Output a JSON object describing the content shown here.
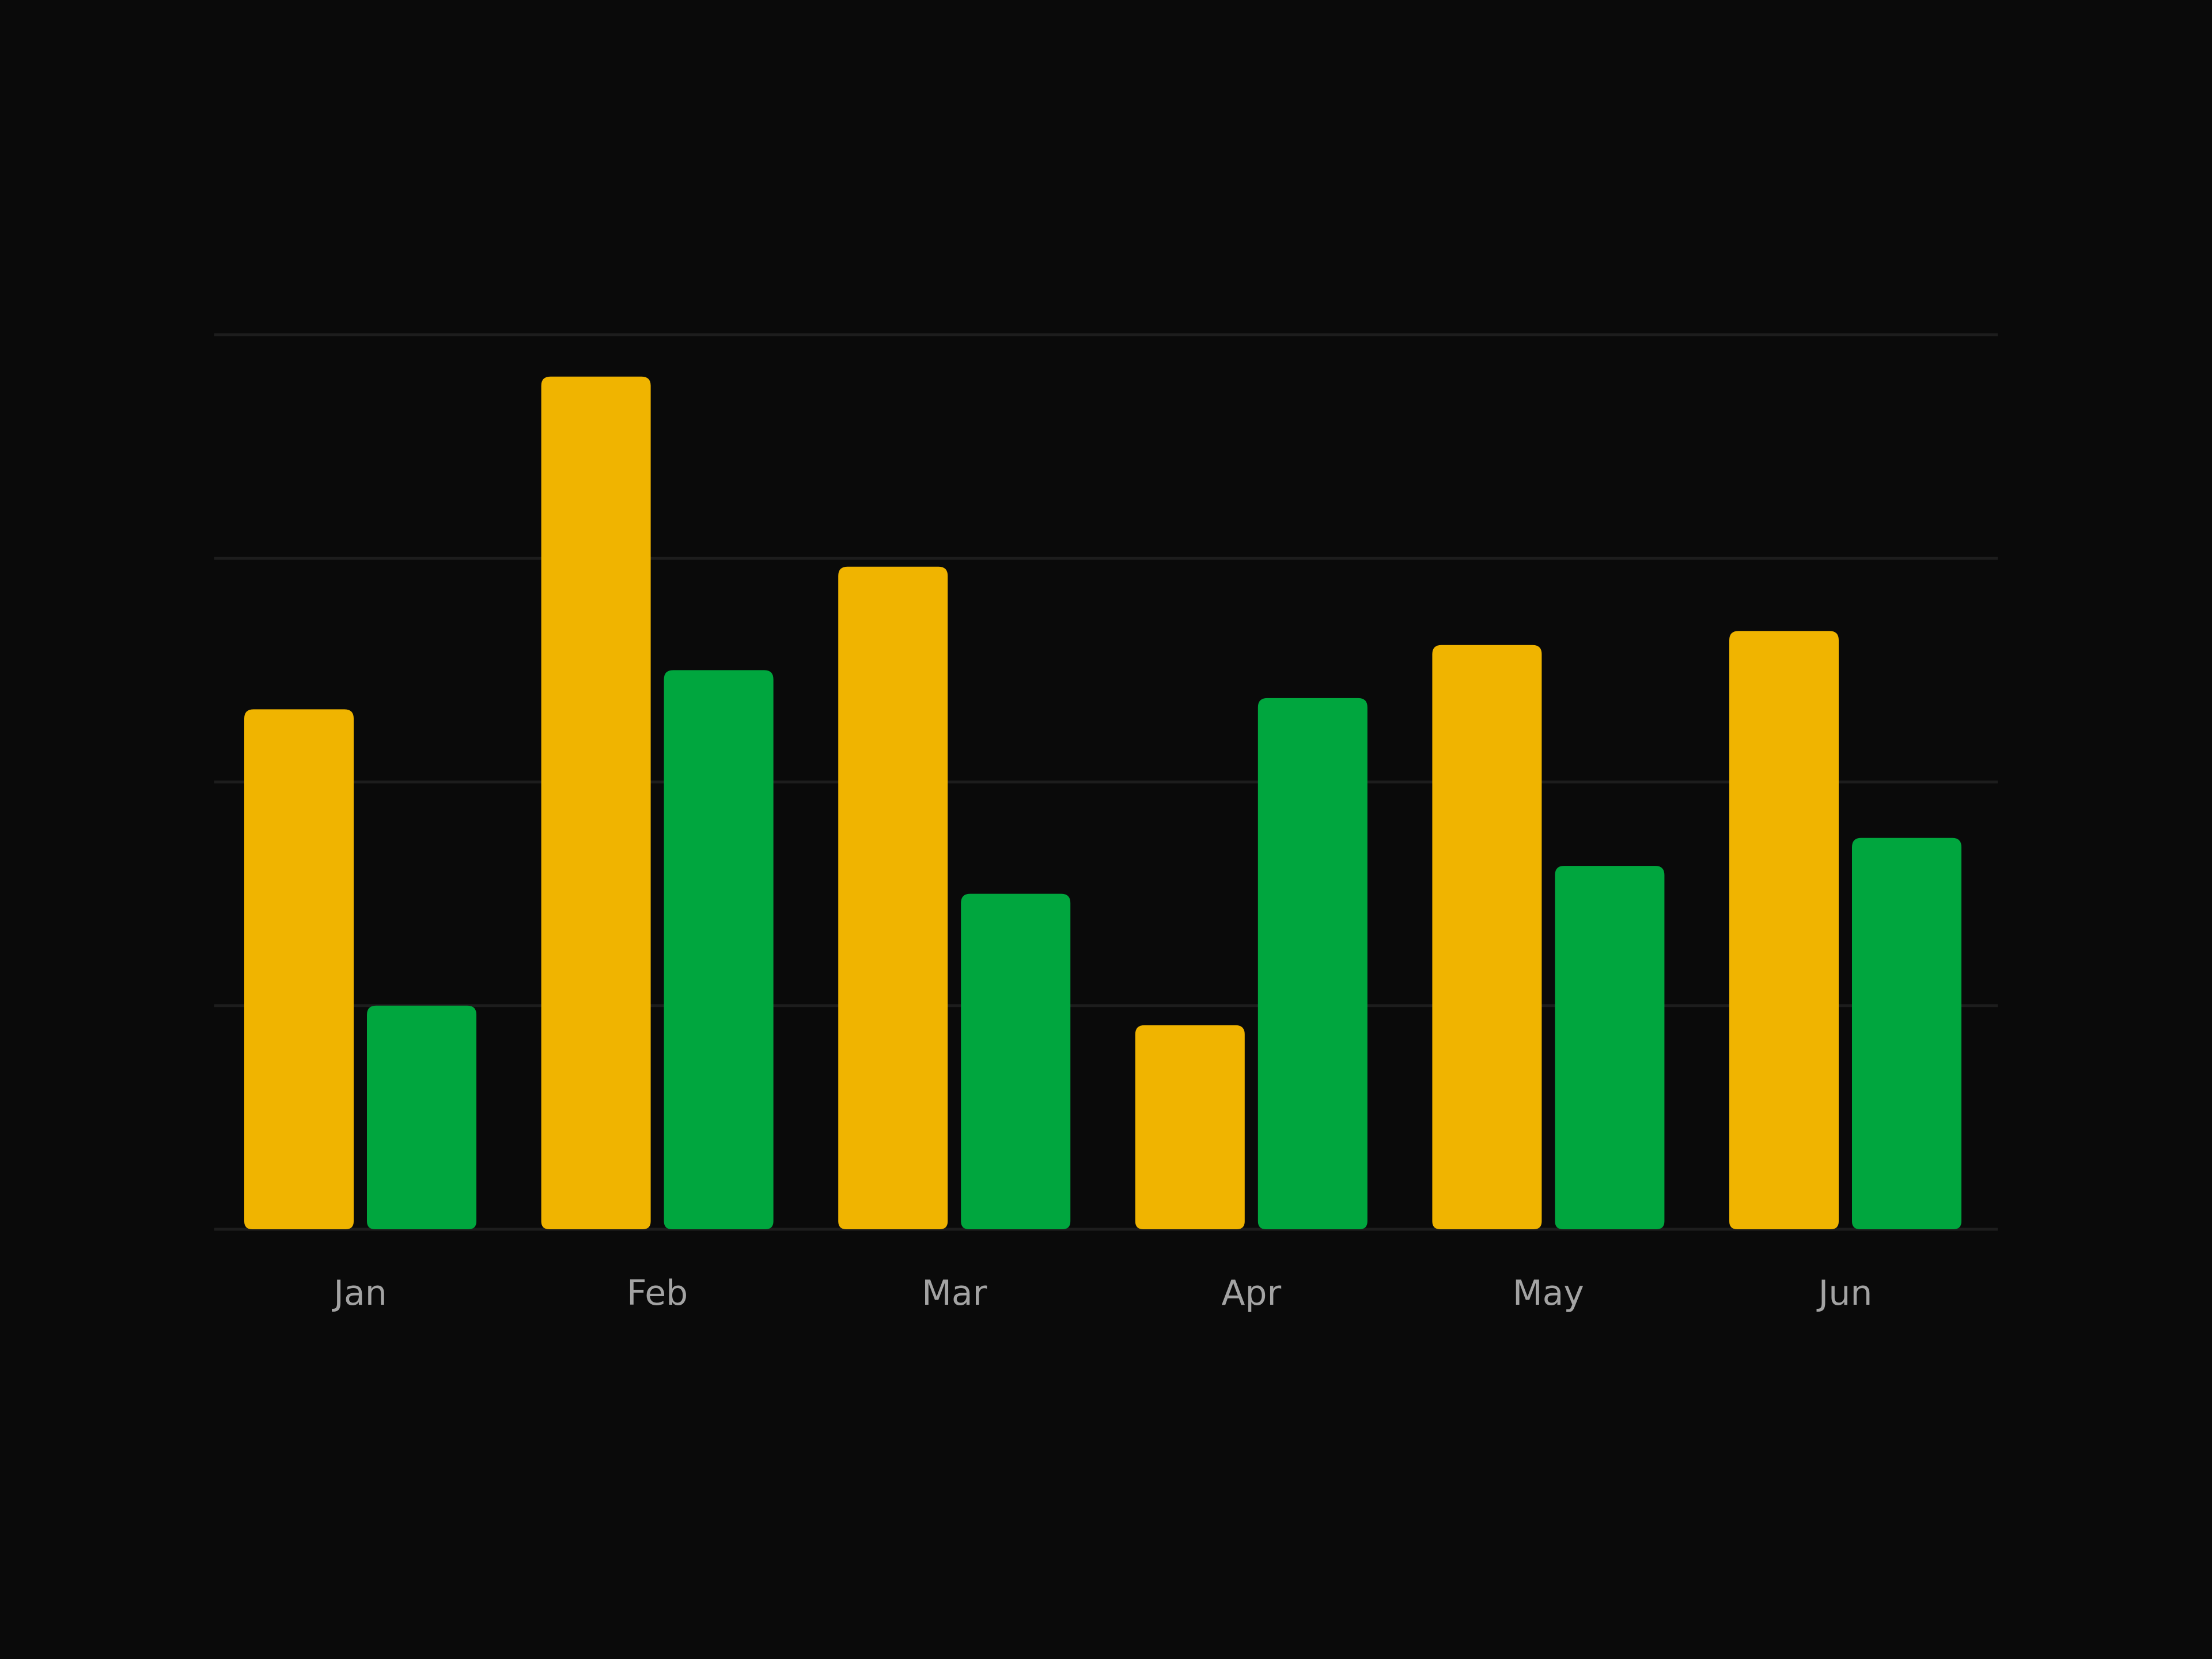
{
  "background_color": "#0a0a0a",
  "chart_data": {
    "type": "bar",
    "categories": [
      "Jan",
      "Feb",
      "Mar",
      "Apr",
      "May",
      "Jun"
    ],
    "series": [
      {
        "values": [
          186,
          305,
          237,
          73,
          209,
          214
        ],
        "color": "#f0b400"
      },
      {
        "values": [
          80,
          200,
          120,
          190,
          130,
          140
        ],
        "color": "#00a63e"
      }
    ],
    "ylim": [
      0,
      320
    ],
    "grid": true,
    "gridline_values": [
      0,
      80,
      160,
      240,
      320
    ],
    "grid_color": "#1d1d1d",
    "tick_label_color": "#a3a3a3",
    "title": "",
    "xlabel": "",
    "ylabel": ""
  }
}
